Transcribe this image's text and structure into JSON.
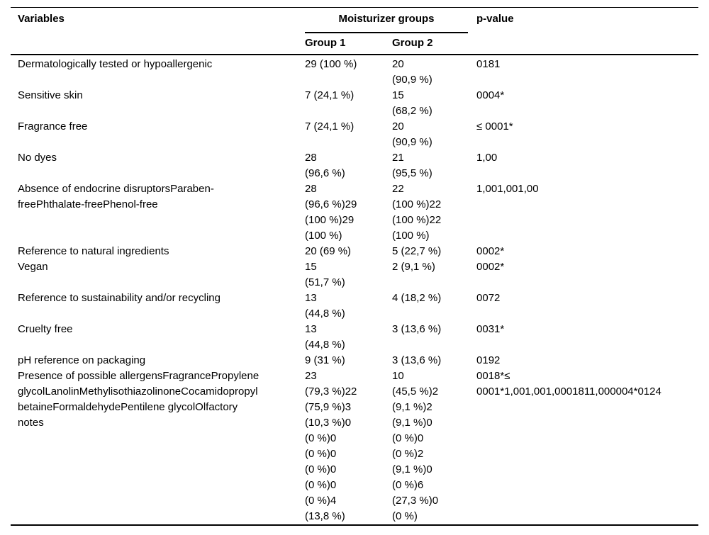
{
  "table": {
    "columns": {
      "variables": "Variables",
      "moisturizer_groups": "Moisturizer groups",
      "group1": "Group 1",
      "group2": "Group 2",
      "pvalue": "p-value"
    },
    "rows": [
      {
        "variable": "Dermatologically tested or hypoallergenic",
        "group1": "29 (100 %)",
        "group2": "20\n(90,9 %)",
        "pvalue": "0181"
      },
      {
        "variable": "Sensitive skin",
        "group1": "7 (24,1 %)",
        "group2": "15\n(68,2 %)",
        "pvalue": "0004*"
      },
      {
        "variable": "Fragrance free",
        "group1": "7 (24,1 %)",
        "group2": "20\n(90,9 %)",
        "pvalue": "≤ 0001*"
      },
      {
        "variable": "No dyes",
        "group1": "28\n(96,6 %)",
        "group2": "21\n(95,5 %)",
        "pvalue": "1,00"
      },
      {
        "variable": "Absence of endocrine disruptorsParaben-\nfreePhthalate-freePhenol-free",
        "group1": "28\n(96,6 %)29\n(100 %)29\n(100 %)",
        "group2": "22\n(100 %)22\n(100 %)22\n(100 %)",
        "pvalue": "1,001,001,00"
      },
      {
        "variable": "Reference to natural ingredients",
        "group1": "20 (69 %)",
        "group2": "5 (22,7 %)",
        "pvalue": "0002*"
      },
      {
        "variable": "Vegan",
        "group1": "15\n(51,7 %)",
        "group2": "2 (9,1 %)",
        "pvalue": "0002*"
      },
      {
        "variable": "Reference to sustainability and/or recycling",
        "group1": "13\n(44,8 %)",
        "group2": "4 (18,2 %)",
        "pvalue": "0072"
      },
      {
        "variable": "Cruelty free",
        "group1": "13\n(44,8 %)",
        "group2": "3 (13,6 %)",
        "pvalue": "0031*"
      },
      {
        "variable": "pH reference on packaging",
        "group1": "9 (31 %)",
        "group2": "3 (13,6 %)",
        "pvalue": "0192"
      },
      {
        "variable": "Presence of possible allergensFragrancePropylene\nglycolLanolinMethylisothiazolinoneCocamidopropyl\nbetaineFormaldehydePentilene glycolOlfactory\nnotes",
        "group1": "23\n(79,3 %)22\n(75,9 %)3\n(10,3 %)0\n(0 %)0\n(0 %)0\n(0 %)0\n(0 %)0\n(0 %)4\n(13,8 %)",
        "group2": "10\n(45,5 %)2\n(9,1 %)2\n(9,1 %)0\n(0 %)0\n(0 %)2\n(9,1 %)0\n(0 %)6\n(27,3 %)0\n(0 %)",
        "pvalue": "0018*≤\n0001*1,001,001,0001811,000004*0124"
      }
    ]
  }
}
